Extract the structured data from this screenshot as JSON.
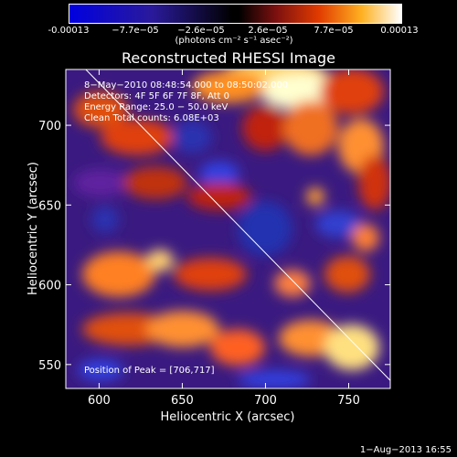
{
  "colorbar": {
    "ticks": [
      "-0.00013",
      "−7.7e−05",
      "−2.6e−05",
      "2.6e−05",
      "7.7e−05",
      "0.00013"
    ],
    "units": "(photons cm⁻² s⁻¹ asec⁻²)"
  },
  "chart_data": {
    "type": "heatmap",
    "title": "Reconstructed RHESSI Image",
    "xlabel": "Heliocentric X (arcsec)",
    "ylabel": "Heliocentric Y (arcsec)",
    "xlim": [
      580,
      775
    ],
    "ylim": [
      535,
      735
    ],
    "xticks": [
      600,
      650,
      700,
      750
    ],
    "yticks": [
      550,
      600,
      650,
      700
    ],
    "colorbar_range": [
      -0.00013,
      0.00013
    ],
    "annotations": {
      "time": "8−May−2010 08:48:54.000 to 08:50:02.000",
      "detectors": "Detectors: 4F 5F 6F 7F 8F, Att 0",
      "energy": "Energy Range: 25.0 − 50.0 keV",
      "clean": "Clean     Total counts: 6.08E+03",
      "peak": "Position of Peak = [706,717]"
    },
    "limb_line": [
      [
        592,
        735
      ],
      [
        775,
        540
      ]
    ],
    "peak_position": [
      706,
      717
    ]
  },
  "footer": {
    "date": "1−Aug−2013 16:55"
  }
}
